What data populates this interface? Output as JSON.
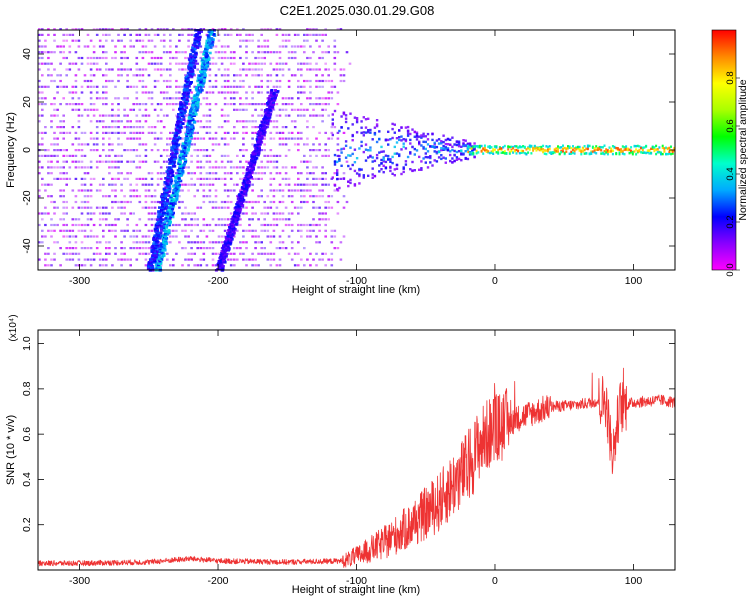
{
  "chart_data": [
    {
      "type": "heatmap",
      "title": "C2E1.2025.030.01.29.G08",
      "xlabel": "Height of straight line (km)",
      "ylabel": "Frequency (Hz)",
      "xlim": [
        -330,
        130
      ],
      "ylim": [
        -50,
        50
      ],
      "xticks": [
        -300,
        -200,
        -100,
        0,
        100
      ],
      "yticks": [
        -40,
        -20,
        0,
        20,
        40
      ],
      "grid": false,
      "colorbar": {
        "label": "Normalized spectral amplitude",
        "range": [
          0,
          1
        ],
        "ticks": [
          0.0,
          0.2,
          0.4,
          0.6,
          0.8
        ],
        "colormap": [
          "#ff00ff",
          "#8800ff",
          "#0000ff",
          "#00aaff",
          "#00ffcc",
          "#00ff00",
          "#aaff00",
          "#ffff00",
          "#ff8800",
          "#ff0000"
        ]
      },
      "features": {
        "broadband_noise_region": [
          -330,
          -105
        ],
        "doppler_tracks": [
          {
            "x": [
              -245,
              -205
            ],
            "y": [
              -50,
              50
            ],
            "amplitude": 0.35
          },
          {
            "x": [
              -250,
              -215
            ],
            "y": [
              -50,
              50
            ],
            "amplitude": 0.25
          },
          {
            "x": [
              -200,
              -160
            ],
            "y": [
              -50,
              25
            ],
            "amplitude": 0.2
          }
        ],
        "carrier_line": {
          "y": 0,
          "x": [
            -110,
            130
          ],
          "amplitude": 0.9
        }
      }
    },
    {
      "type": "line",
      "xlabel": "Height of straight line (km)",
      "ylabel": "SNR (10 * v/v)",
      "y_multiplier": "(x10⁴)",
      "xlim": [
        -330,
        130
      ],
      "ylim": [
        0,
        1.06
      ],
      "xticks": [
        -300,
        -200,
        -100,
        0,
        100
      ],
      "yticks": [
        0.2,
        0.4,
        0.6,
        0.8,
        1.0
      ],
      "grid": false,
      "series": [
        {
          "color": "#ee3333",
          "x": [
            -330,
            -300,
            -250,
            -220,
            -200,
            -150,
            -110,
            -100,
            -80,
            -60,
            -40,
            -30,
            -20,
            -12,
            -5,
            0,
            10,
            20,
            40,
            60,
            80,
            85,
            90,
            100,
            120,
            130
          ],
          "y": [
            0.03,
            0.03,
            0.035,
            0.05,
            0.04,
            0.035,
            0.04,
            0.06,
            0.12,
            0.2,
            0.3,
            0.38,
            0.45,
            0.55,
            0.6,
            0.62,
            0.65,
            0.68,
            0.72,
            0.73,
            0.75,
            0.5,
            0.72,
            0.74,
            0.75,
            0.74
          ]
        }
      ]
    }
  ]
}
